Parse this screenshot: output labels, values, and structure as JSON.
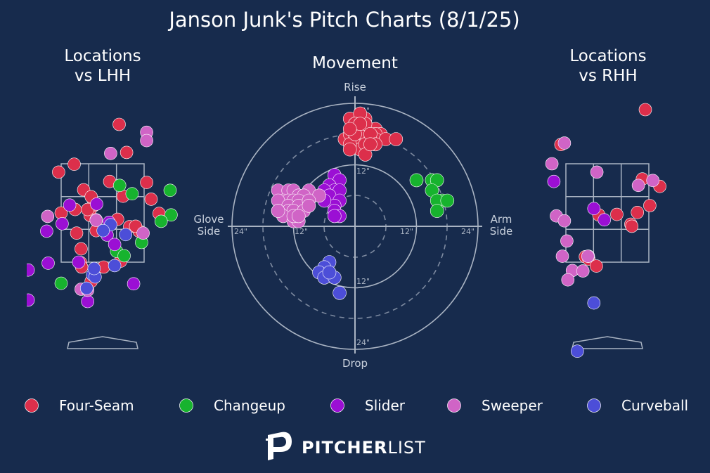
{
  "title": "Janson Junk's Pitch Charts (8/1/25)",
  "panels": {
    "lhh_title_line1": "Locations",
    "lhh_title_line2": "vs LHH",
    "movement_title": "Movement",
    "rhh_title_line1": "Locations",
    "rhh_title_line2": "vs RHH"
  },
  "movement_axes": {
    "rise": "Rise",
    "drop": "Drop",
    "glove_side_line1": "Glove",
    "glove_side_line2": "Side",
    "arm_side_line1": "Arm",
    "arm_side_line2": "Side",
    "ring_labels": [
      "12\"",
      "24\""
    ]
  },
  "colors": {
    "background": "#172b4d",
    "Four-Seam": "#dc2f4b",
    "Changeup": "#17b32e",
    "Slider": "#9b0fd4",
    "Sweeper": "#d064c6",
    "Curveball": "#4c4ed8",
    "grid": "#aab4c3"
  },
  "legend": [
    "Four-Seam",
    "Changeup",
    "Slider",
    "Sweeper",
    "Curveball"
  ],
  "brand": {
    "bold": "PITCHER",
    "light": "LIST"
  },
  "chart_data": [
    {
      "type": "scatter",
      "title": "Movement",
      "units": "inches",
      "x_label": "horizontal break (negative = glove side, positive = arm side)",
      "y_label": "vertical break (positive = rise)",
      "xlim": [
        -24,
        24
      ],
      "ylim": [
        -24,
        24
      ],
      "rings": [
        12,
        24
      ],
      "series": [
        {
          "name": "Four-Seam",
          "points": [
            [
              -1,
              21
            ],
            [
              0,
              20
            ],
            [
              1,
              19
            ],
            [
              2,
              21
            ],
            [
              3,
              19
            ],
            [
              4,
              19
            ],
            [
              5,
              18
            ],
            [
              -2,
              17
            ],
            [
              -1,
              18
            ],
            [
              0,
              17
            ],
            [
              1,
              17
            ],
            [
              2,
              18
            ],
            [
              3,
              17
            ],
            [
              4,
              18
            ],
            [
              0,
              16
            ],
            [
              1,
              15
            ],
            [
              2,
              16
            ],
            [
              -1,
              16
            ],
            [
              -1,
              15
            ],
            [
              0,
              18
            ],
            [
              2,
              20
            ],
            [
              4,
              17
            ],
            [
              6,
              17
            ],
            [
              8,
              17
            ],
            [
              3,
              18
            ],
            [
              1,
              22
            ],
            [
              0,
              20
            ],
            [
              4,
              16
            ],
            [
              2,
              14
            ],
            [
              1,
              20
            ],
            [
              3,
              16
            ],
            [
              -1,
              19
            ]
          ]
        },
        {
          "name": "Changeup",
          "points": [
            [
              12,
              9
            ],
            [
              15,
              9
            ],
            [
              16,
              9
            ],
            [
              15,
              7
            ],
            [
              17,
              5
            ],
            [
              16,
              5
            ],
            [
              18,
              5
            ],
            [
              16,
              3
            ]
          ]
        },
        {
          "name": "Slider",
          "points": [
            [
              -4,
              10
            ],
            [
              -3,
              9
            ],
            [
              -5,
              8
            ],
            [
              -4,
              7
            ],
            [
              -3,
              7
            ],
            [
              -6,
              7
            ],
            [
              -5,
              6
            ],
            [
              -3,
              5
            ],
            [
              -4,
              4
            ],
            [
              -6,
              5
            ],
            [
              -4,
              3
            ],
            [
              -3,
              2
            ],
            [
              -4,
              2
            ]
          ]
        },
        {
          "name": "Sweeper",
          "points": [
            [
              -15,
              7
            ],
            [
              -13,
              7
            ],
            [
              -12,
              7
            ],
            [
              -11,
              6
            ],
            [
              -9,
              7
            ],
            [
              -10,
              6
            ],
            [
              -7,
              6
            ],
            [
              -14,
              5
            ],
            [
              -13,
              5
            ],
            [
              -12,
              5
            ],
            [
              -11,
              5
            ],
            [
              -15,
              5
            ],
            [
              -13,
              4
            ],
            [
              -11,
              4
            ],
            [
              -9,
              5
            ],
            [
              -15,
              3
            ],
            [
              -13,
              3
            ],
            [
              -12,
              3
            ],
            [
              -10,
              3
            ],
            [
              -14,
              2
            ],
            [
              -12,
              1
            ],
            [
              -11,
              1
            ],
            [
              -15,
              3
            ],
            [
              -9,
              4
            ],
            [
              -12,
              2
            ],
            [
              -11,
              2
            ]
          ]
        },
        {
          "name": "Curveball",
          "points": [
            [
              -5,
              -7
            ],
            [
              -6,
              -8
            ],
            [
              -7,
              -9
            ],
            [
              -6,
              -10
            ],
            [
              -4,
              -10
            ],
            [
              -3,
              -13
            ],
            [
              -5,
              -9
            ]
          ]
        }
      ]
    },
    {
      "type": "scatter",
      "title": "Locations vs LHH",
      "units": "feet (catcher's view)",
      "xlim": [
        -2.5,
        2.5
      ],
      "ylim": [
        -0.5,
        5.0
      ],
      "strike_zone": {
        "x": [
          -0.83,
          0.83
        ],
        "y": [
          1.5,
          3.5
        ]
      },
      "series": [
        {
          "name": "Four-Seam",
          "points": [
            [
              0.33,
              4.3
            ],
            [
              0.48,
              3.73
            ],
            [
              -0.57,
              3.49
            ],
            [
              -0.88,
              3.33
            ],
            [
              0.14,
              3.14
            ],
            [
              -0.38,
              2.97
            ],
            [
              0.41,
              2.84
            ],
            [
              -0.83,
              2.5
            ],
            [
              -0.55,
              2.57
            ],
            [
              -0.21,
              2.62
            ],
            [
              -0.25,
              2.45
            ],
            [
              0.54,
              2.22
            ],
            [
              -0.13,
              2.14
            ],
            [
              0.73,
              2.13
            ],
            [
              -0.52,
              2.09
            ],
            [
              -0.43,
              1.77
            ],
            [
              -0.44,
              1.49
            ],
            [
              0.02,
              1.4
            ],
            [
              -0.42,
              1.4
            ],
            [
              -0.23,
              1.11
            ],
            [
              0.88,
              3.12
            ],
            [
              -0.23,
              2.83
            ],
            [
              -0.3,
              2.57
            ],
            [
              0.3,
              2.37
            ],
            [
              0.66,
              2.23
            ],
            [
              0.36,
              1.52
            ],
            [
              1.13,
              2.49
            ],
            [
              0.97,
              2.78
            ]
          ]
        },
        {
          "name": "Changeup",
          "points": [
            [
              0.34,
              3.06
            ],
            [
              0.59,
              2.89
            ],
            [
              1.35,
              2.96
            ],
            [
              1.37,
              2.46
            ],
            [
              1.17,
              2.33
            ],
            [
              0.78,
              1.9
            ],
            [
              0.28,
              1.72
            ],
            [
              0.43,
              1.63
            ],
            [
              -0.83,
              1.07
            ]
          ]
        },
        {
          "name": "Slider",
          "points": [
            [
              -0.66,
              2.66
            ],
            [
              -0.13,
              2.36
            ],
            [
              0.13,
              2.31
            ],
            [
              -0.81,
              2.28
            ],
            [
              0.09,
              2.05
            ],
            [
              -1.12,
              2.13
            ],
            [
              0.24,
              1.86
            ],
            [
              -0.48,
              1.5
            ],
            [
              -1.09,
              1.48
            ],
            [
              -1.49,
              1.34
            ],
            [
              0.62,
              1.06
            ],
            [
              -0.3,
              0.7
            ],
            [
              -1.49,
              0.73
            ],
            [
              -0.12,
              2.68
            ]
          ]
        },
        {
          "name": "Sweeper",
          "points": [
            [
              0.88,
              4.14
            ],
            [
              0.88,
              3.97
            ],
            [
              0.16,
              3.71
            ],
            [
              0.81,
              2.09
            ],
            [
              -1.1,
              2.43
            ],
            [
              -0.43,
              0.95
            ],
            [
              -0.3,
              0.93
            ],
            [
              -0.18,
              1.24
            ],
            [
              -0.13,
              2.35
            ]
          ]
        },
        {
          "name": "Curveball",
          "points": [
            [
              0.16,
              2.26
            ],
            [
              0.46,
              2.06
            ],
            [
              -0.2,
              1.24
            ],
            [
              -0.15,
              1.2
            ],
            [
              -0.17,
              1.37
            ],
            [
              0.24,
              1.43
            ],
            [
              -0.32,
              0.97
            ],
            [
              0.01,
              2.14
            ]
          ]
        }
      ]
    },
    {
      "type": "scatter",
      "title": "Locations vs RHH",
      "units": "feet (catcher's view)",
      "xlim": [
        -2.5,
        2.5
      ],
      "ylim": [
        -0.5,
        5.0
      ],
      "strike_zone": {
        "x": [
          -0.83,
          0.83
        ],
        "y": [
          1.5,
          3.5
        ]
      },
      "series": [
        {
          "name": "Four-Seam",
          "points": [
            [
              0.76,
              4.6
            ],
            [
              -0.93,
              3.89
            ],
            [
              -1.74,
              3.52
            ],
            [
              0.7,
              3.19
            ],
            [
              1.05,
              3.04
            ],
            [
              0.85,
              2.65
            ],
            [
              0.6,
              2.51
            ],
            [
              0.19,
              2.47
            ],
            [
              -0.17,
              2.46
            ],
            [
              0.47,
              2.27
            ],
            [
              0.49,
              2.23
            ],
            [
              -0.44,
              1.61
            ],
            [
              -0.37,
              1.56
            ],
            [
              -0.22,
              1.42
            ]
          ]
        },
        {
          "name": "Changeup",
          "points": []
        },
        {
          "name": "Slider",
          "points": [
            [
              -1.07,
              3.14
            ],
            [
              -0.27,
              2.59
            ],
            [
              -0.06,
              2.36
            ],
            [
              -0.38,
              1.62
            ]
          ]
        },
        {
          "name": "Sweeper",
          "points": [
            [
              -0.86,
              3.92
            ],
            [
              -1.11,
              3.5
            ],
            [
              -0.21,
              3.33
            ],
            [
              0.62,
              3.06
            ],
            [
              0.91,
              3.16
            ],
            [
              -1.02,
              2.44
            ],
            [
              -0.86,
              2.34
            ],
            [
              -0.81,
              1.93
            ],
            [
              -0.9,
              1.62
            ],
            [
              -0.7,
              1.33
            ],
            [
              -0.49,
              1.32
            ],
            [
              -0.79,
              1.14
            ],
            [
              -2.08,
              0.83
            ],
            [
              -0.39,
              1.62
            ]
          ]
        },
        {
          "name": "Curveball",
          "points": [
            [
              -0.27,
              0.67
            ],
            [
              -0.6,
              -0.31
            ]
          ]
        }
      ]
    }
  ]
}
